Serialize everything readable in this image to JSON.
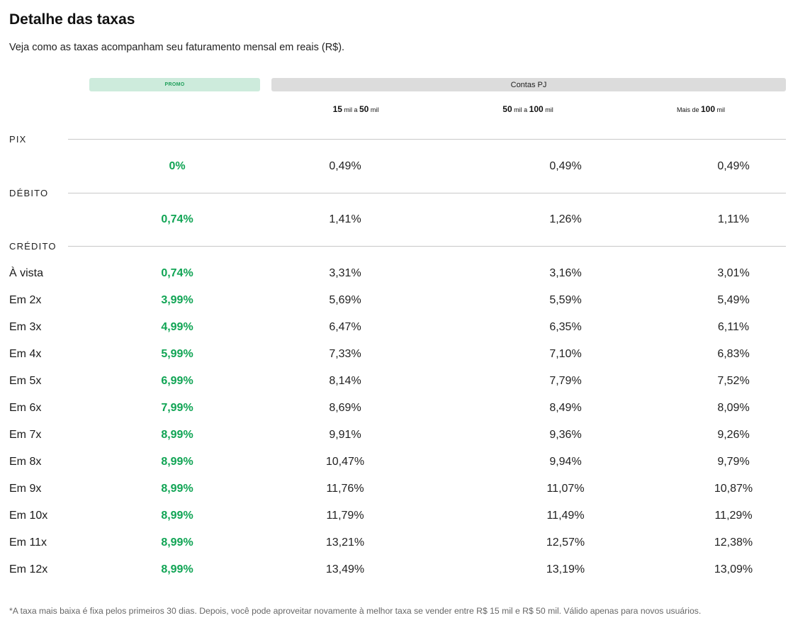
{
  "page": {
    "title": "Detalhe das taxas",
    "subtitle": "Veja como as taxas acompanham seu faturamento mensal em reais (R$)."
  },
  "header": {
    "promo_label": "PROMO",
    "group_label": "Contas PJ",
    "tiers": [
      {
        "a": "15",
        "b": " mil a ",
        "c": "50",
        "d": " mil"
      },
      {
        "a": "50",
        "b": " mil a ",
        "c": "100",
        "d": " mil"
      },
      {
        "a": "Mais de ",
        "b": "",
        "c": "100",
        "d": " mil"
      }
    ]
  },
  "sections": {
    "pix": {
      "label": "PIX",
      "rows": [
        {
          "label": "",
          "promo": "0%",
          "t1": "0,49%",
          "t2": "0,49%",
          "t3": "0,49%"
        }
      ]
    },
    "debito": {
      "label": "DÉBITO",
      "rows": [
        {
          "label": "",
          "promo": "0,74%",
          "t1": "1,41%",
          "t2": "1,26%",
          "t3": "1,11%"
        }
      ]
    },
    "credito": {
      "label": "CRÉDITO",
      "rows": [
        {
          "label": "À vista",
          "promo": "0,74%",
          "t1": "3,31%",
          "t2": "3,16%",
          "t3": "3,01%"
        },
        {
          "label": "Em 2x",
          "promo": "3,99%",
          "t1": "5,69%",
          "t2": "5,59%",
          "t3": "5,49%"
        },
        {
          "label": "Em 3x",
          "promo": "4,99%",
          "t1": "6,47%",
          "t2": "6,35%",
          "t3": "6,11%"
        },
        {
          "label": "Em 4x",
          "promo": "5,99%",
          "t1": "7,33%",
          "t2": "7,10%",
          "t3": "6,83%"
        },
        {
          "label": "Em 5x",
          "promo": "6,99%",
          "t1": "8,14%",
          "t2": "7,79%",
          "t3": "7,52%"
        },
        {
          "label": "Em 6x",
          "promo": "7,99%",
          "t1": "8,69%",
          "t2": "8,49%",
          "t3": "8,09%"
        },
        {
          "label": "Em 7x",
          "promo": "8,99%",
          "t1": "9,91%",
          "t2": "9,36%",
          "t3": "9,26%"
        },
        {
          "label": "Em 8x",
          "promo": "8,99%",
          "t1": "10,47%",
          "t2": "9,94%",
          "t3": "9,79%"
        },
        {
          "label": "Em 9x",
          "promo": "8,99%",
          "t1": "11,76%",
          "t2": "11,07%",
          "t3": "10,87%"
        },
        {
          "label": "Em 10x",
          "promo": "8,99%",
          "t1": "11,79%",
          "t2": "11,49%",
          "t3": "11,29%"
        },
        {
          "label": "Em 11x",
          "promo": "8,99%",
          "t1": "13,21%",
          "t2": "12,57%",
          "t3": "12,38%"
        },
        {
          "label": "Em 12x",
          "promo": "8,99%",
          "t1": "13,49%",
          "t2": "13,19%",
          "t3": "13,09%"
        }
      ]
    }
  },
  "footnote": "*A taxa mais baixa é fixa pelos primeiros 30 dias. Depois, você pode aproveitar novamente à melhor taxa se vender entre R$ 15 mil e R$ 50 mil. Válido apenas para novos usuários.",
  "colors": {
    "promo_green": "#10a454",
    "promo_pill_bg": "#cdebdc",
    "group_pill_bg": "#dcdcdc",
    "rule": "#c8c8c8"
  }
}
